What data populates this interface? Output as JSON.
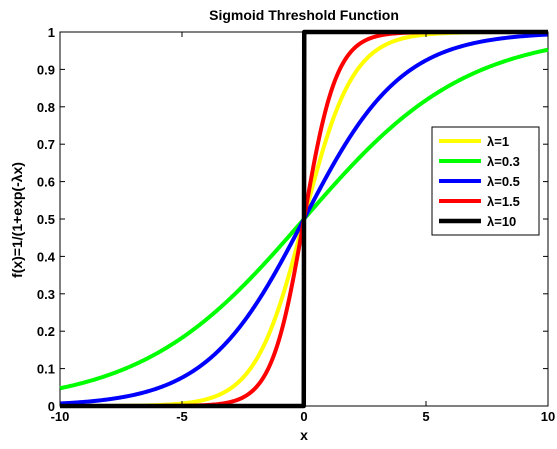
{
  "chart_data": {
    "type": "line",
    "title": "Sigmoid Threshold Function",
    "xlabel": "x",
    "ylabel": "f(x)=1/(1+exp(-λx)",
    "xlim": [
      -10,
      10
    ],
    "ylim": [
      0,
      1
    ],
    "x_ticks": [
      -10,
      -5,
      0,
      5,
      10
    ],
    "y_ticks": [
      0,
      0.1,
      0.2,
      0.3,
      0.4,
      0.5,
      0.6,
      0.7,
      0.8,
      0.9,
      1
    ],
    "x_tick_labels": [
      "-10",
      "-5",
      "0",
      "5",
      "10"
    ],
    "y_tick_labels": [
      "0",
      "0.1",
      "0.2",
      "0.3",
      "0.4",
      "0.5",
      "0.6",
      "0.7",
      "0.8",
      "0.9",
      "1"
    ],
    "grid": false,
    "legend_position": "right",
    "x": [
      -10,
      -9,
      -8,
      -7,
      -6,
      -5,
      -4,
      -3,
      -2,
      -1,
      -0.5,
      0,
      0.5,
      1,
      2,
      3,
      4,
      5,
      6,
      7,
      8,
      9,
      10
    ],
    "series": [
      {
        "name": "λ=1",
        "lambda": 1,
        "color": "#ffff00",
        "values": [
          0.0,
          0.0001,
          0.0003,
          0.0009,
          0.0025,
          0.0067,
          0.018,
          0.0474,
          0.1192,
          0.2689,
          0.3775,
          0.5,
          0.6225,
          0.7311,
          0.8808,
          0.9526,
          0.982,
          0.9933,
          0.9975,
          0.9991,
          0.9997,
          0.9999,
          1.0
        ]
      },
      {
        "name": "λ=0.3",
        "lambda": 0.3,
        "color": "#00ff00",
        "values": [
          0.0474,
          0.063,
          0.0832,
          0.1091,
          0.1419,
          0.1824,
          0.2315,
          0.2891,
          0.3543,
          0.4256,
          0.4626,
          0.5,
          0.5374,
          0.5744,
          0.6457,
          0.7109,
          0.7685,
          0.8176,
          0.8581,
          0.8909,
          0.9168,
          0.937,
          0.9526
        ]
      },
      {
        "name": "λ=0.5",
        "lambda": 0.5,
        "color": "#0000ff",
        "values": [
          0.0067,
          0.011,
          0.018,
          0.0293,
          0.0474,
          0.0759,
          0.1192,
          0.1824,
          0.2689,
          0.3775,
          0.4378,
          0.5,
          0.5622,
          0.6225,
          0.7311,
          0.8176,
          0.8808,
          0.9241,
          0.9526,
          0.9707,
          0.982,
          0.989,
          0.9933
        ]
      },
      {
        "name": "λ=1.5",
        "lambda": 1.5,
        "color": "#ff0000",
        "values": [
          0.0,
          0.0,
          0.0,
          0.0,
          0.0001,
          0.0006,
          0.0025,
          0.011,
          0.0474,
          0.1824,
          0.3208,
          0.5,
          0.6792,
          0.8176,
          0.9526,
          0.989,
          0.9975,
          0.9994,
          0.9999,
          1.0,
          1.0,
          1.0,
          1.0
        ]
      },
      {
        "name": "λ=10",
        "lambda": 10,
        "color": "#000000",
        "values": [
          0,
          0,
          0,
          0,
          0,
          0,
          0,
          0,
          0,
          0.0,
          0.0067,
          0.5,
          0.9933,
          1.0,
          1,
          1,
          1,
          1,
          1,
          1,
          1,
          1,
          1
        ]
      }
    ]
  }
}
